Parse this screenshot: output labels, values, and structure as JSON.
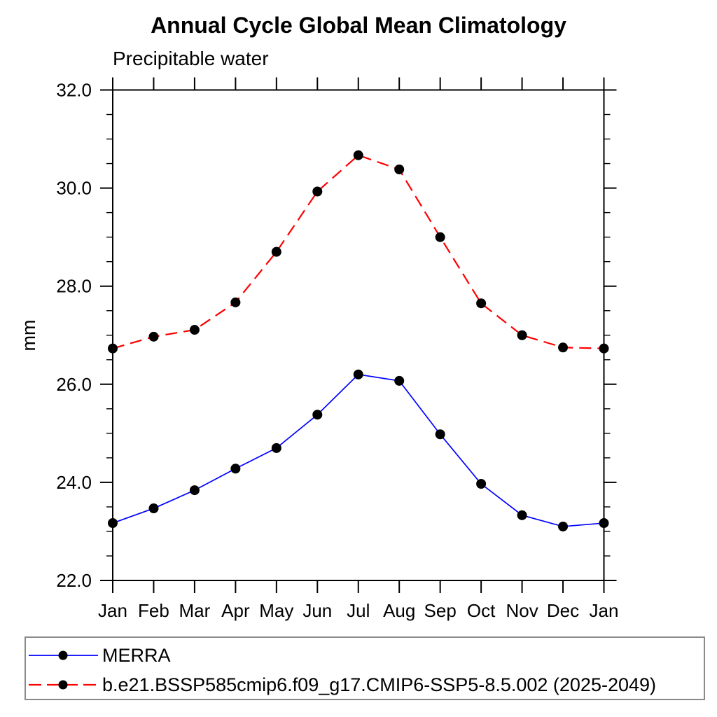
{
  "chart_data": {
    "type": "line",
    "title": "Annual Cycle Global Mean Climatology",
    "subtitle": "Precipitable water",
    "xlabel": "",
    "ylabel": "mm",
    "ylim": [
      22.0,
      32.0
    ],
    "ytick_major": [
      22.0,
      24.0,
      26.0,
      28.0,
      30.0,
      32.0
    ],
    "ytick_minor_step": 0.5,
    "categories": [
      "Jan",
      "Feb",
      "Mar",
      "Apr",
      "May",
      "Jun",
      "Jul",
      "Aug",
      "Sep",
      "Oct",
      "Nov",
      "Dec",
      "Jan"
    ],
    "grid": false,
    "legend_position": "bottom-left-box",
    "marker": {
      "shape": "circle",
      "color": "#000000",
      "radius": 7
    },
    "series": [
      {
        "name": "MERRA",
        "color": "#0000ff",
        "line_style": "solid",
        "line_width": 1.7,
        "values": [
          23.17,
          23.47,
          23.84,
          24.28,
          24.7,
          25.38,
          26.2,
          26.07,
          24.98,
          23.97,
          23.33,
          23.1,
          23.17
        ]
      },
      {
        "name": "b.e21.BSSP585cmip6.f09_g17.CMIP6-SSP5-8.5.002 (2025-2049)",
        "color": "#ff0000",
        "line_style": "dashed",
        "line_width": 2.2,
        "values": [
          26.73,
          26.97,
          27.11,
          27.67,
          28.7,
          29.93,
          30.67,
          30.38,
          29.0,
          27.65,
          27.0,
          26.75,
          26.73
        ]
      }
    ]
  }
}
